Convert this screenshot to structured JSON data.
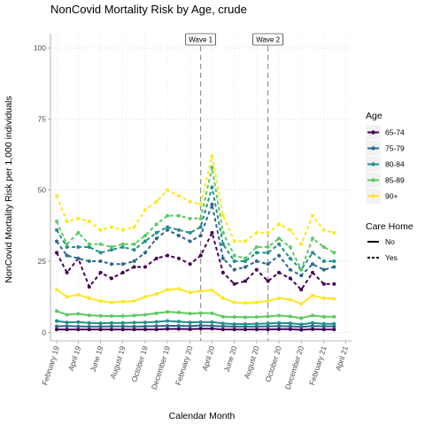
{
  "chart_data": {
    "type": "line",
    "title": "NonCovid Mortality Risk by Age, crude",
    "xlabel": "Calendar Month",
    "ylabel": "NonCovid Mortality Risk per 1,000 individuals",
    "ylim": [
      -3,
      105
    ],
    "y_ticks": [
      0,
      25,
      50,
      75,
      100
    ],
    "x_months": [
      "2019-02",
      "2019-03",
      "2019-04",
      "2019-05",
      "2019-06",
      "2019-07",
      "2019-08",
      "2019-09",
      "2019-10",
      "2019-11",
      "2019-12",
      "2020-01",
      "2020-02",
      "2020-03",
      "2020-04",
      "2020-05",
      "2020-06",
      "2020-07",
      "2020-08",
      "2020-09",
      "2020-10",
      "2020-11",
      "2020-12",
      "2021-01",
      "2021-02",
      "2021-03"
    ],
    "x_tick_labels": [
      "February 19",
      "April 19",
      "June 19",
      "August 19",
      "October 19",
      "December 19",
      "February 20",
      "April 20",
      "June 20",
      "August 20",
      "October 20",
      "December 20",
      "February 21",
      "April 21"
    ],
    "x_tick_months": [
      "2019-02",
      "2019-04",
      "2019-06",
      "2019-08",
      "2019-10",
      "2019-12",
      "2020-02",
      "2020-04",
      "2020-06",
      "2020-08",
      "2020-10",
      "2020-12",
      "2021-02",
      "2021-04"
    ],
    "x_range": [
      "2019-01-15",
      "2021-04-20"
    ],
    "grid": true,
    "legend_position": "right",
    "age_legend_title": "Age",
    "care_legend_title": "Care Home",
    "care_levels": [
      {
        "label": "No",
        "dash": "solid"
      },
      {
        "label": "Yes",
        "dash": "dashed"
      }
    ],
    "reference_lines": [
      {
        "label": "Wave 1",
        "x": "2020-03"
      },
      {
        "label": "Wave 2",
        "x": "2020-09"
      }
    ],
    "series": [
      {
        "name": "65-74",
        "color": "#440154",
        "no": [
          1,
          1,
          1,
          1,
          1,
          1,
          1,
          1,
          1,
          1,
          1.2,
          1.2,
          1.1,
          1.3,
          1.3,
          1,
          1,
          1,
          1,
          1,
          1.1,
          1.1,
          0.9,
          1.1,
          1,
          1
        ],
        "yes": [
          28,
          21,
          26,
          16,
          21,
          19,
          21,
          23,
          23,
          26,
          27,
          26,
          24,
          27,
          35,
          21,
          17,
          18,
          22,
          18,
          21,
          19,
          15,
          21,
          17,
          17
        ]
      },
      {
        "name": "75-79",
        "color": "#31688e",
        "no": [
          2.1,
          2.2,
          2.1,
          2,
          2,
          2.1,
          2.1,
          2,
          2.1,
          2.2,
          2.3,
          2.3,
          2.2,
          2.4,
          2.3,
          2.1,
          2,
          2,
          2,
          2.1,
          2.2,
          2.1,
          1.9,
          2.2,
          2.1,
          2.1
        ],
        "yes": [
          32,
          27,
          26,
          25,
          25,
          24,
          24,
          25,
          28,
          33,
          36,
          34,
          32,
          34,
          45,
          26,
          22,
          23,
          25,
          24,
          27,
          22,
          20,
          24,
          22,
          23
        ]
      },
      {
        "name": "80-84",
        "color": "#21908c",
        "no": [
          4,
          3.5,
          3.6,
          3.3,
          3.2,
          3.3,
          3.3,
          3.4,
          3.5,
          3.7,
          4,
          3.8,
          3.5,
          3.6,
          3.6,
          3.1,
          2.9,
          2.9,
          3,
          3.1,
          3.3,
          3.2,
          2.8,
          3.3,
          3,
          3
        ]
      },
      {
        "name": "85-89",
        "color": "#5ec962",
        "no": [
          7.5,
          6.2,
          6.5,
          6,
          5.8,
          5.7,
          5.7,
          5.9,
          6.2,
          6.7,
          7.2,
          7,
          6.6,
          6.8,
          6.7,
          5.5,
          5.4,
          5.3,
          5.4,
          5.6,
          5.9,
          5.6,
          5,
          5.9,
          5.5,
          5.5
        ],
        "yes": [
          39,
          31,
          35,
          31,
          31,
          30,
          31,
          31,
          34,
          38,
          41,
          41,
          40,
          40,
          58,
          35,
          27,
          26,
          30,
          30,
          33,
          30,
          22,
          33,
          30,
          28
        ]
      },
      {
        "name": "90+",
        "color": "#fde725",
        "no": [
          15,
          12.5,
          13.2,
          12,
          11,
          10.5,
          10.8,
          11,
          12.5,
          13.5,
          15,
          15.3,
          14,
          14.5,
          14.8,
          12,
          10.5,
          10.3,
          10.5,
          11,
          12,
          11.5,
          10,
          13,
          12,
          11.8
        ],
        "yes": [
          48,
          39,
          40,
          39,
          36,
          37,
          36,
          37,
          43,
          46,
          50,
          48,
          46,
          45,
          62,
          41,
          32,
          32,
          35,
          35,
          38,
          36,
          31,
          41,
          36,
          35
        ]
      }
    ],
    "series_80_84_yes": [
      36,
      30,
      30,
      30,
      28,
      29,
      30,
      29,
      32,
      35,
      37,
      36,
      35,
      37,
      51,
      31,
      25,
      25,
      28,
      28,
      31,
      26,
      22,
      28,
      25,
      25
    ]
  }
}
